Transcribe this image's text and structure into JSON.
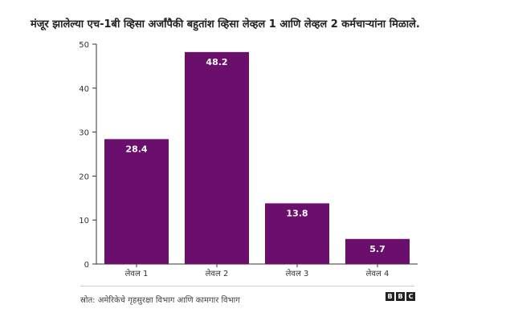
{
  "title": "मंजूर झालेल्या एच-1बी व्हिसा अर्जांपैकी बहुतांश व्हिसा लेव्हल 1 आणि लेव्हल 2 कर्मचाऱ्यांना मिळाले.",
  "source": "स्रोत: अमेरिकेचे गृहसुरक्षा विभाग आणि कामगार विभाग",
  "logo": [
    "B",
    "B",
    "C"
  ],
  "colors": {
    "bar": "#6a0f6b",
    "axis": "#333333",
    "label_text": "#ffffff"
  },
  "chart_data": {
    "type": "bar",
    "categories": [
      "लेवल 1",
      "लेवल 2",
      "लेवल 3",
      "लेवल 4"
    ],
    "values": [
      28.4,
      48.2,
      13.8,
      5.7
    ],
    "data_labels": [
      "28.4",
      "48.2",
      "13.8",
      "5.7"
    ],
    "ylim": [
      0,
      50
    ],
    "yticks": [
      0,
      10,
      20,
      30,
      40,
      50
    ],
    "grid": false,
    "legend": "none"
  }
}
